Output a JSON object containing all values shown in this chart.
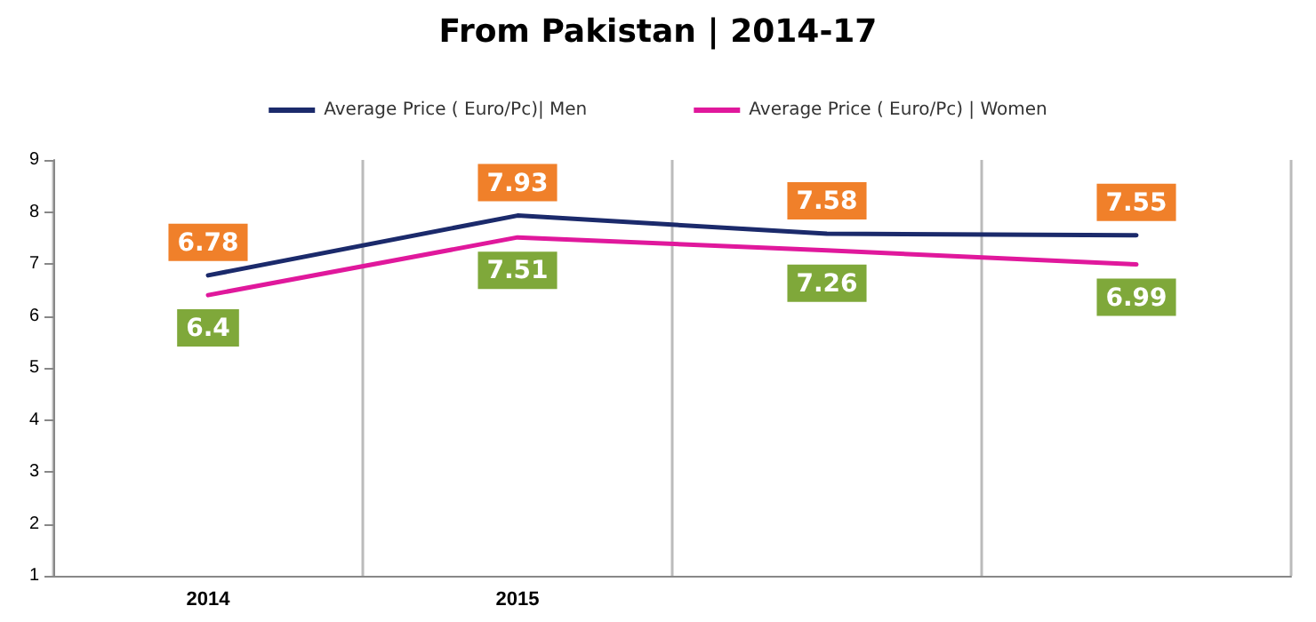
{
  "chart_data": {
    "type": "line",
    "title": "From Pakistan | 2014-17",
    "categories": [
      "2014",
      "2015",
      null,
      null
    ],
    "series": [
      {
        "name": "Average Price ( Euro/Pc)| Men",
        "color": "#1b2a6b",
        "values": [
          6.78,
          7.93,
          7.58,
          7.55
        ]
      },
      {
        "name": "Average Price ( Euro/Pc) | Women",
        "color": "#e0189c",
        "values": [
          6.4,
          7.51,
          7.26,
          6.99
        ]
      }
    ],
    "ylim": [
      1,
      9
    ],
    "yticks": [
      1,
      2,
      3,
      4,
      5,
      6,
      7,
      8,
      9
    ],
    "grid": "x",
    "legend": "top",
    "marker": "none",
    "line_style": "solid",
    "data_labels": true
  }
}
